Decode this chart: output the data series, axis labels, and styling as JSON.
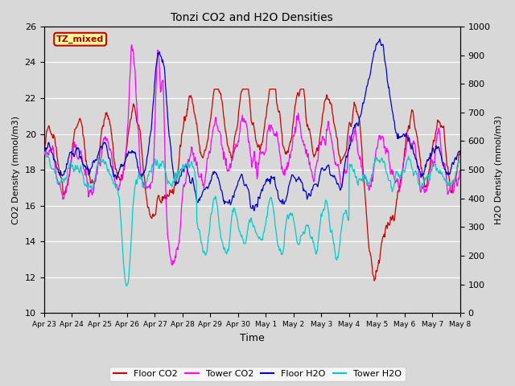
{
  "title": "Tonzi CO2 and H2O Densities",
  "xlabel": "Time",
  "ylabel_left": "CO2 Density (mmol/m3)",
  "ylabel_right": "H2O Density (mmol/m3)",
  "ylim_left": [
    10,
    26
  ],
  "ylim_right": [
    0,
    1000
  ],
  "yticks_left": [
    10,
    12,
    14,
    16,
    18,
    20,
    22,
    24,
    26
  ],
  "yticks_right": [
    0,
    100,
    200,
    300,
    400,
    500,
    600,
    700,
    800,
    900,
    1000
  ],
  "annotation_text": "TZ_mixed",
  "annotation_bg": "#ffff99",
  "annotation_border": "#cc0000",
  "colors": {
    "floor_co2": "#cc0000",
    "tower_co2": "#ff00ff",
    "floor_h2o": "#0000cc",
    "tower_h2o": "#00cccc"
  },
  "bg_color": "#d8d8d8",
  "grid_color": "#ffffff",
  "xtick_labels": [
    "Apr 23",
    "Apr 24",
    "Apr 25",
    "Apr 26",
    "Apr 27",
    "Apr 28",
    "Apr 29",
    "Apr 30",
    "May 1",
    "May 2",
    "May 3",
    "May 4",
    "May 5",
    "May 6",
    "May 7",
    "May 8"
  ],
  "seed": 42
}
